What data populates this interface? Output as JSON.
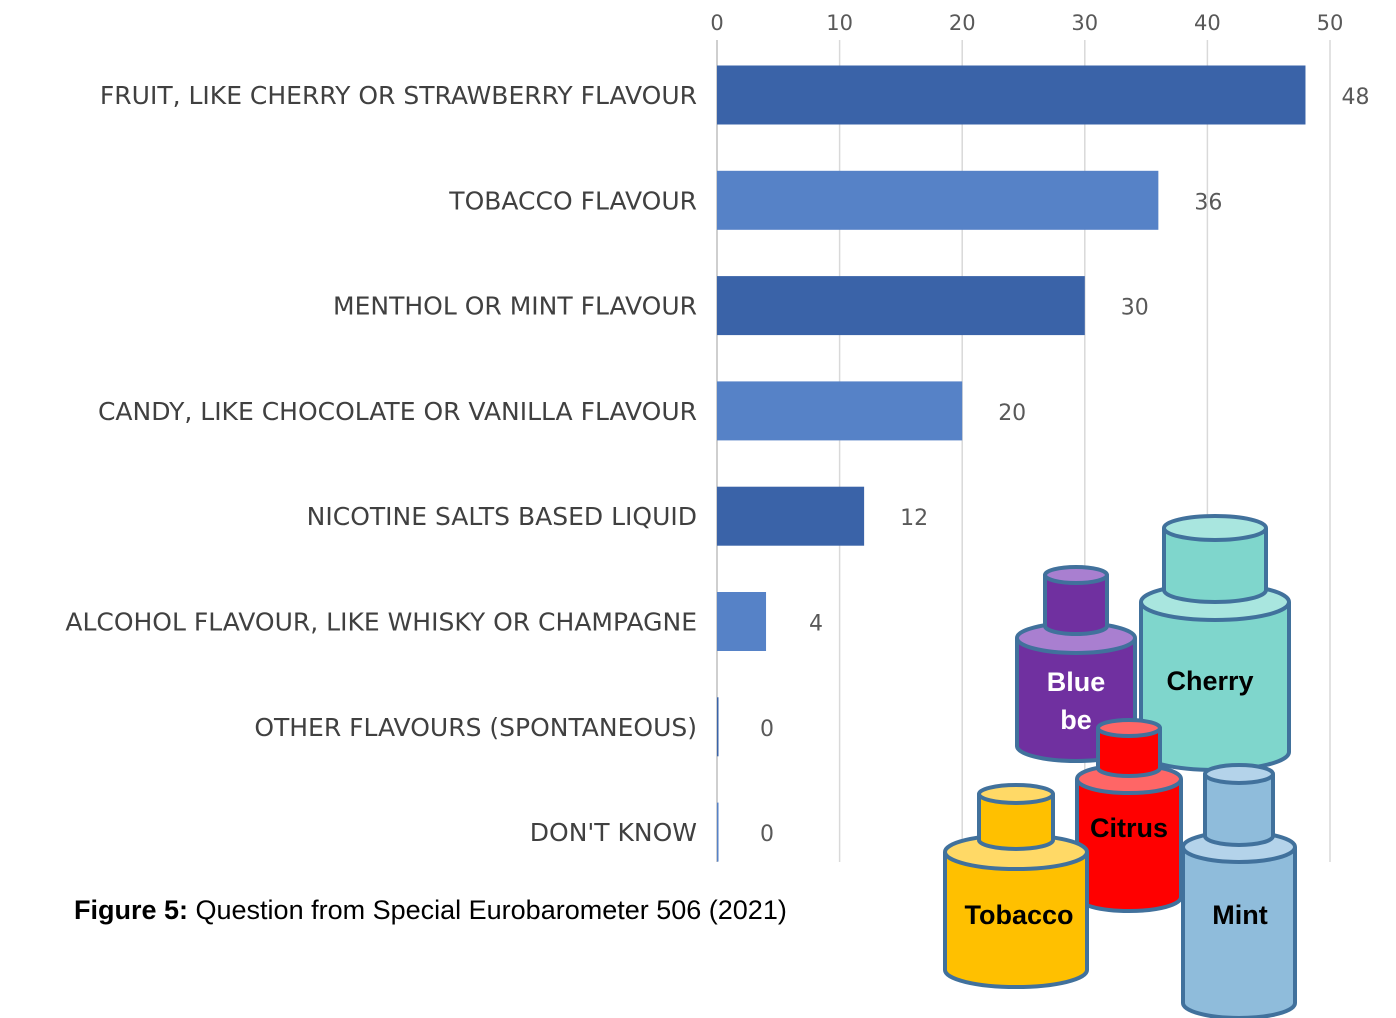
{
  "chart_data": {
    "type": "bar",
    "orientation": "horizontal",
    "categories": [
      "FRUIT, LIKE CHERRY OR STRAWBERRY FLAVOUR",
      "TOBACCO FLAVOUR",
      "MENTHOL OR MINT FLAVOUR",
      "CANDY, LIKE CHOCOLATE OR VANILLA FLAVOUR",
      "NICOTINE SALTS BASED LIQUID",
      "ALCOHOL FLAVOUR, LIKE WHISKY OR CHAMPAGNE",
      "OTHER FLAVOURS (SPONTANEOUS)",
      "DON'T KNOW"
    ],
    "values": [
      48,
      36,
      30,
      20,
      12,
      4,
      0,
      0
    ],
    "xlim": [
      0,
      50
    ],
    "xticks": [
      0,
      10,
      20,
      30,
      40,
      50
    ],
    "axis_position": "top",
    "grid": true,
    "colors": [
      "#3a63a8",
      "#5682c7",
      "#3a63a8",
      "#5682c7",
      "#3a63a8",
      "#5682c7",
      "#3a63a8",
      "#5682c7"
    ]
  },
  "caption": {
    "label": "Figure 5:",
    "text": " Question from Special Eurobarometer 506 (2021)"
  },
  "illustration": {
    "bottles": [
      {
        "label_line1": "Blue",
        "label_line2": "be",
        "color": "#7030a0"
      },
      {
        "label_line1": "Cherry",
        "color": "#7fd6cc"
      },
      {
        "label_line1": "Citrus",
        "color": "#ff0000"
      },
      {
        "label_line1": "Tobacco",
        "color": "#ffc000"
      },
      {
        "label_line1": "Mint",
        "color": "#8fbcdb"
      }
    ]
  }
}
